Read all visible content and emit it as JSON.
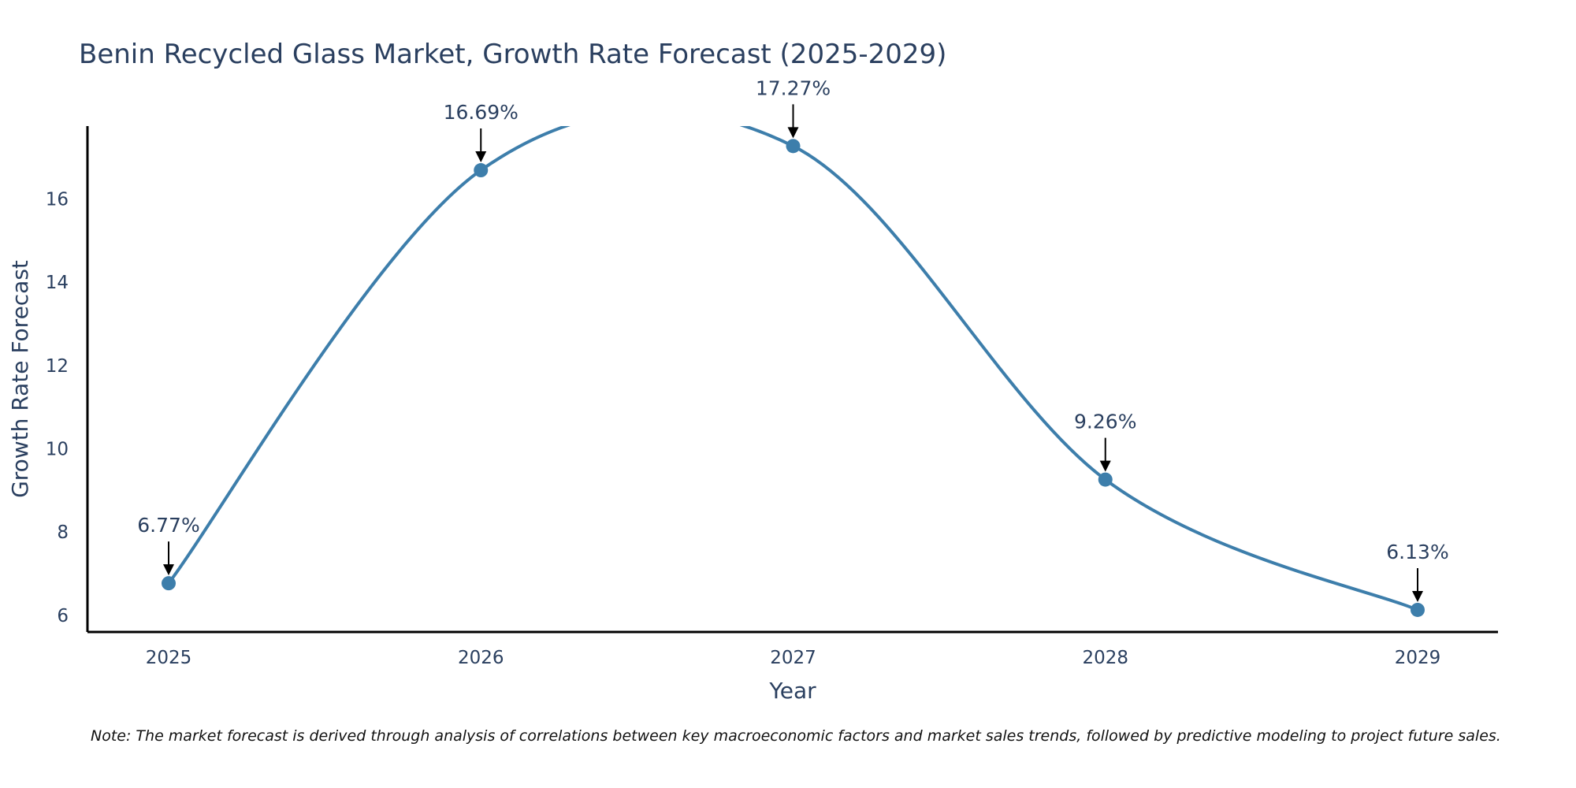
{
  "chart_data": {
    "type": "line",
    "title": "Benin Recycled Glass Market, Growth Rate Forecast (2025-2029)",
    "xlabel": "Year",
    "ylabel": "Growth Rate Forecast",
    "categories": [
      "2025",
      "2026",
      "2027",
      "2028",
      "2029"
    ],
    "values": [
      6.77,
      16.69,
      17.27,
      9.26,
      6.13
    ],
    "data_labels": [
      "6.77%",
      "16.69%",
      "17.27%",
      "9.26%",
      "6.13%"
    ],
    "yticks": [
      6,
      8,
      10,
      12,
      14,
      16
    ],
    "ytick_labels": [
      "6",
      "8",
      "10",
      "12",
      "14",
      "16"
    ],
    "ylim": [
      5.6,
      17.75
    ],
    "grid": false,
    "line_shape": "spline",
    "line_color": "#3d7eab",
    "marker_color": "#3d7eab",
    "axis_color": "#000000",
    "text_color": "#2a3f5f",
    "note": "Note: The market forecast is derived through analysis of correlations between key macroeconomic factors and market sales trends, followed by predictive modeling to project future sales."
  }
}
